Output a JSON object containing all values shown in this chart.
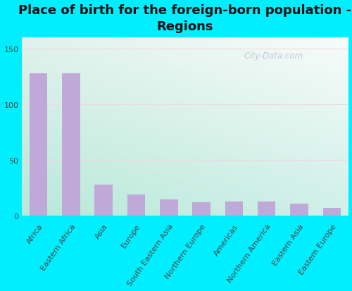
{
  "title": "Place of birth for the foreign-born population -\nRegions",
  "categories": [
    "Africa",
    "Eastern Africa",
    "Asia",
    "Europe",
    "South Eastern Asia",
    "Northern Europe",
    "Americas",
    "Northern America",
    "Eastern Asia",
    "Eastern Europe"
  ],
  "values": [
    128,
    128,
    28,
    19,
    15,
    12,
    13,
    13,
    11,
    7
  ],
  "bar_color": "#c0a8d8",
  "bar_edge_color": "#c0a8d8",
  "background_outer": "#00eeff",
  "bg_top_left": "#d0ede0",
  "bg_top_right": "#f0f8f0",
  "bg_bottom_left": "#b8e8d0",
  "bg_bottom_right": "#e8f5ee",
  "ylim": [
    0,
    160
  ],
  "yticks": [
    0,
    50,
    100,
    150
  ],
  "grid_color": "#e8e8e8",
  "title_fontsize": 13,
  "tick_fontsize": 8,
  "watermark": "City-Data.com"
}
